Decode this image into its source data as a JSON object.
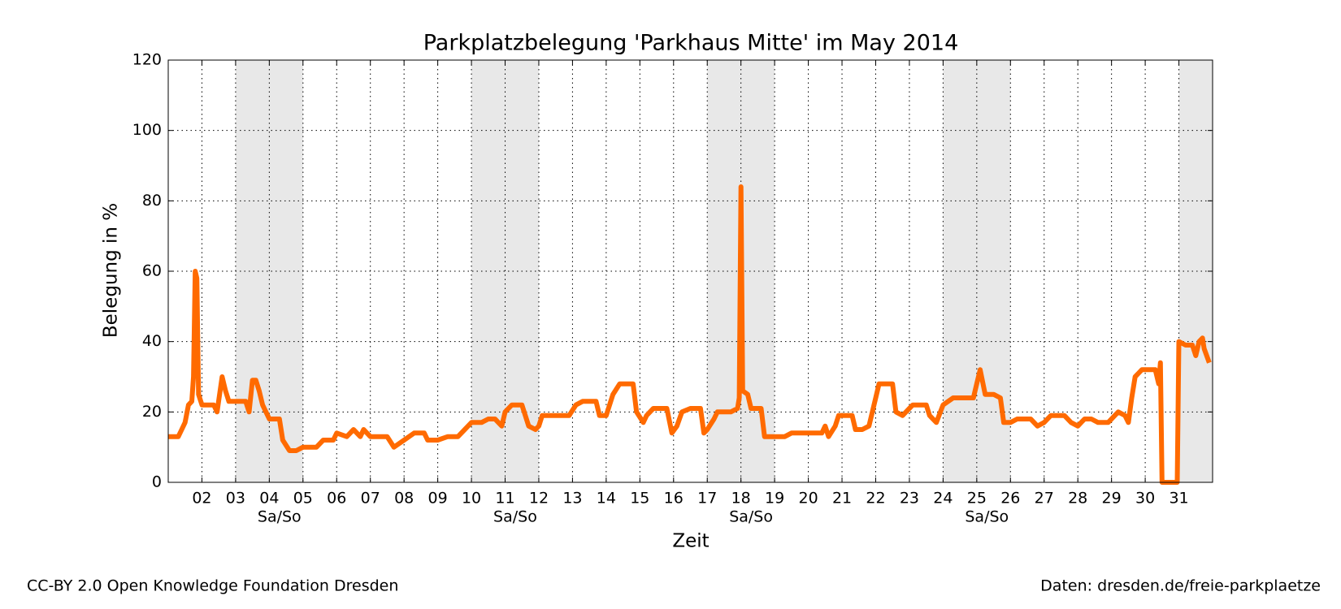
{
  "chart_data": {
    "type": "line",
    "title": "Parkplatzbelegung 'Parkhaus Mitte' im May 2014",
    "x_label": "Zeit",
    "y_label": "Belegung in %",
    "xlim": [
      1,
      32
    ],
    "ylim": [
      0,
      120
    ],
    "yticks": [
      0,
      20,
      40,
      60,
      80,
      100,
      120
    ],
    "xticks": [
      {
        "value": 2,
        "label": "02"
      },
      {
        "value": 3,
        "label": "03"
      },
      {
        "value": 4,
        "label": "04"
      },
      {
        "value": 5,
        "label": "05"
      },
      {
        "value": 6,
        "label": "06"
      },
      {
        "value": 7,
        "label": "07"
      },
      {
        "value": 8,
        "label": "08"
      },
      {
        "value": 9,
        "label": "09"
      },
      10,
      11,
      12,
      13,
      14,
      15,
      16,
      17,
      18,
      19,
      20,
      21,
      22,
      23,
      24,
      25,
      26,
      27,
      28,
      29,
      30,
      31
    ],
    "grid": true,
    "shaded_ranges": [
      {
        "range": [
          3,
          5
        ],
        "label": "Sa/So"
      },
      {
        "range": [
          10,
          12
        ],
        "label": "Sa/So"
      },
      {
        "range": [
          17,
          19
        ],
        "label": "Sa/So"
      },
      {
        "range": [
          24,
          26
        ],
        "label": "Sa/So"
      },
      {
        "range": [
          31,
          32
        ]
      }
    ],
    "x": [
      1.0,
      1.3,
      1.4,
      1.5,
      1.6,
      1.7,
      1.75,
      1.8,
      1.85,
      1.9,
      2.0,
      2.35,
      2.45,
      2.6,
      2.7,
      2.8,
      3.0,
      3.3,
      3.4,
      3.5,
      3.6,
      3.7,
      3.8,
      4.0,
      4.3,
      4.4,
      4.6,
      4.8,
      5.0,
      5.4,
      5.6,
      5.9,
      6.0,
      6.3,
      6.5,
      6.7,
      6.8,
      7.0,
      7.5,
      7.7,
      8.0,
      8.3,
      8.6,
      8.7,
      9.0,
      9.3,
      9.6,
      9.8,
      10.0,
      10.3,
      10.5,
      10.7,
      10.9,
      11.0,
      11.2,
      11.5,
      11.7,
      11.9,
      12.0,
      12.1,
      12.5,
      12.9,
      13.1,
      13.3,
      13.7,
      13.8,
      14.0,
      14.2,
      14.4,
      14.8,
      14.9,
      15.1,
      15.2,
      15.4,
      15.8,
      15.95,
      16.1,
      16.25,
      16.5,
      16.8,
      16.9,
      17.0,
      17.2,
      17.3,
      17.7,
      17.9,
      17.95,
      18.0,
      18.05,
      18.2,
      18.3,
      18.6,
      18.7,
      19.0,
      19.3,
      19.5,
      20.0,
      20.4,
      20.5,
      20.6,
      20.8,
      20.9,
      21.3,
      21.4,
      21.6,
      21.8,
      22.0,
      22.1,
      22.5,
      22.6,
      22.8,
      23.0,
      23.1,
      23.5,
      23.6,
      23.8,
      24.0,
      24.3,
      24.9,
      25.0,
      25.1,
      25.25,
      25.5,
      25.7,
      25.8,
      26.0,
      26.2,
      26.6,
      26.8,
      27.0,
      27.2,
      27.6,
      27.8,
      28.0,
      28.1,
      28.2,
      28.4,
      28.6,
      28.9,
      29.0,
      29.2,
      29.4,
      29.5,
      29.6,
      29.7,
      29.9,
      30.3,
      30.4,
      30.45,
      30.5,
      30.95,
      31.0,
      31.2,
      31.4,
      31.5,
      31.6,
      31.7,
      31.75,
      31.9
    ],
    "series": [
      {
        "color": "#ff6a00",
        "values": [
          13,
          13,
          15,
          17,
          22,
          23,
          30,
          60,
          58,
          25,
          22,
          22,
          20,
          30,
          26,
          23,
          23,
          23,
          20,
          29,
          29,
          26,
          22,
          18,
          18,
          12,
          9,
          9,
          10,
          10,
          12,
          12,
          14,
          13,
          15,
          13,
          15,
          13,
          13,
          10,
          12,
          14,
          14,
          12,
          12,
          13,
          13,
          15,
          17,
          17,
          18,
          18,
          16,
          20,
          22,
          22,
          16,
          15,
          16,
          19,
          19,
          19,
          22,
          23,
          23,
          19,
          19,
          25,
          28,
          28,
          20,
          17,
          19,
          21,
          21,
          14,
          16,
          20,
          21,
          21,
          14,
          15,
          18,
          20,
          20,
          21,
          24,
          84,
          26,
          25,
          21,
          21,
          13,
          13,
          13,
          14,
          14,
          14,
          16,
          13,
          16,
          19,
          19,
          15,
          15,
          16,
          24,
          28,
          28,
          20,
          19,
          21,
          22,
          22,
          19,
          17,
          22,
          24,
          24,
          28,
          32,
          25,
          25,
          24,
          17,
          17,
          18,
          18,
          16,
          17,
          19,
          19,
          17,
          16,
          17,
          18,
          18,
          17,
          17,
          18,
          20,
          19,
          17,
          24,
          30,
          32,
          32,
          28,
          34,
          0,
          0,
          40,
          39,
          39,
          36,
          40,
          41,
          38,
          34
        ]
      }
    ]
  },
  "footer": {
    "left": "CC-BY 2.0 Open Knowledge Foundation Dresden",
    "right": "Daten: dresden.de/freie-parkplaetze"
  }
}
